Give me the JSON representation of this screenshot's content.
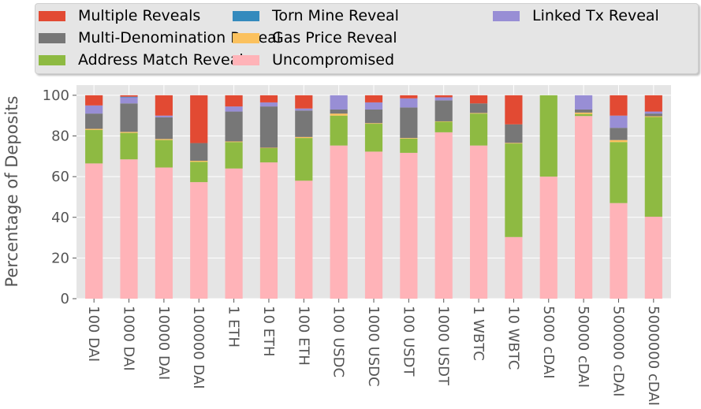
{
  "chart_data": {
    "type": "bar",
    "stacked": true,
    "ylabel": "Percentage of Deposits",
    "xlabel": "",
    "ylim": [
      0,
      105
    ],
    "yticks": [
      0,
      20,
      40,
      60,
      80,
      100
    ],
    "grid": true,
    "legend_position": "top",
    "categories": [
      "100 DAI",
      "1000 DAI",
      "10000 DAI",
      "100000 DAI",
      "1 ETH",
      "10 ETH",
      "100 ETH",
      "100 USDC",
      "1000 USDC",
      "100 USDT",
      "1000 USDT",
      "1 WBTC",
      "10 WBTC",
      "5000 cDAI",
      "50000 cDAI",
      "500000 cDAI",
      "5000000 cDAI"
    ],
    "series": [
      {
        "name": "Uncompromised",
        "color": "#ffb3b8",
        "values": [
          66.5,
          68.5,
          64.5,
          57.3,
          64.0,
          67.0,
          58.0,
          75.3,
          72.3,
          71.7,
          81.8,
          75.3,
          30.3,
          60.0,
          89.8,
          47.0,
          40.3
        ]
      },
      {
        "name": "Address Match Reveal",
        "color": "#8eba42",
        "values": [
          16.5,
          13.0,
          13.5,
          10.0,
          13.0,
          7.0,
          21.0,
          14.7,
          13.7,
          7.0,
          5.2,
          15.7,
          46.0,
          40.0,
          1.0,
          30.0,
          49.0
        ]
      },
      {
        "name": "Gas Price Reveal",
        "color": "#fbc15e",
        "values": [
          0.5,
          0.5,
          0.5,
          0.5,
          0.3,
          0.2,
          0.5,
          1.0,
          0.3,
          0.3,
          0.2,
          0.3,
          0.3,
          0.0,
          0.7,
          1.0,
          0.4
        ]
      },
      {
        "name": "Multi-Denomination Reveal",
        "color": "#777777",
        "values": [
          7.5,
          14.0,
          10.7,
          8.7,
          14.7,
          20.3,
          13.0,
          2.0,
          6.7,
          15.0,
          10.3,
          4.7,
          9.1,
          0.0,
          1.5,
          6.0,
          1.3
        ]
      },
      {
        "name": "Linked Tx Reveal",
        "color": "#988ed5",
        "values": [
          4.0,
          3.0,
          0.8,
          0.0,
          2.5,
          2.0,
          1.0,
          7.0,
          3.5,
          4.5,
          1.5,
          0.0,
          0.0,
          0.0,
          7.0,
          6.0,
          1.0
        ]
      },
      {
        "name": "Torn Mine Reveal",
        "color": "#348abd",
        "values": [
          0.0,
          0.3,
          0.0,
          0.0,
          0.0,
          0.0,
          0.0,
          0.0,
          0.0,
          0.0,
          0.0,
          0.0,
          0.0,
          0.0,
          0.0,
          0.0,
          0.0
        ]
      },
      {
        "name": "Multiple Reveals",
        "color": "#e24a33",
        "values": [
          5.0,
          0.7,
          10.0,
          23.5,
          5.5,
          3.5,
          6.5,
          0.0,
          3.5,
          1.5,
          1.0,
          4.0,
          14.3,
          0.0,
          0.0,
          10.0,
          8.0
        ]
      }
    ],
    "legend": [
      {
        "name": "Multiple Reveals",
        "color": "#e24a33"
      },
      {
        "name": "Multi-Denomination Reveal",
        "color": "#777777"
      },
      {
        "name": "Address Match Reveal",
        "color": "#8eba42"
      },
      {
        "name": "Torn Mine Reveal",
        "color": "#348abd"
      },
      {
        "name": "Gas Price Reveal",
        "color": "#fbc15e"
      },
      {
        "name": "Uncompromised",
        "color": "#ffb3b8"
      },
      {
        "name": "Linked Tx Reveal",
        "color": "#988ed5"
      }
    ]
  }
}
